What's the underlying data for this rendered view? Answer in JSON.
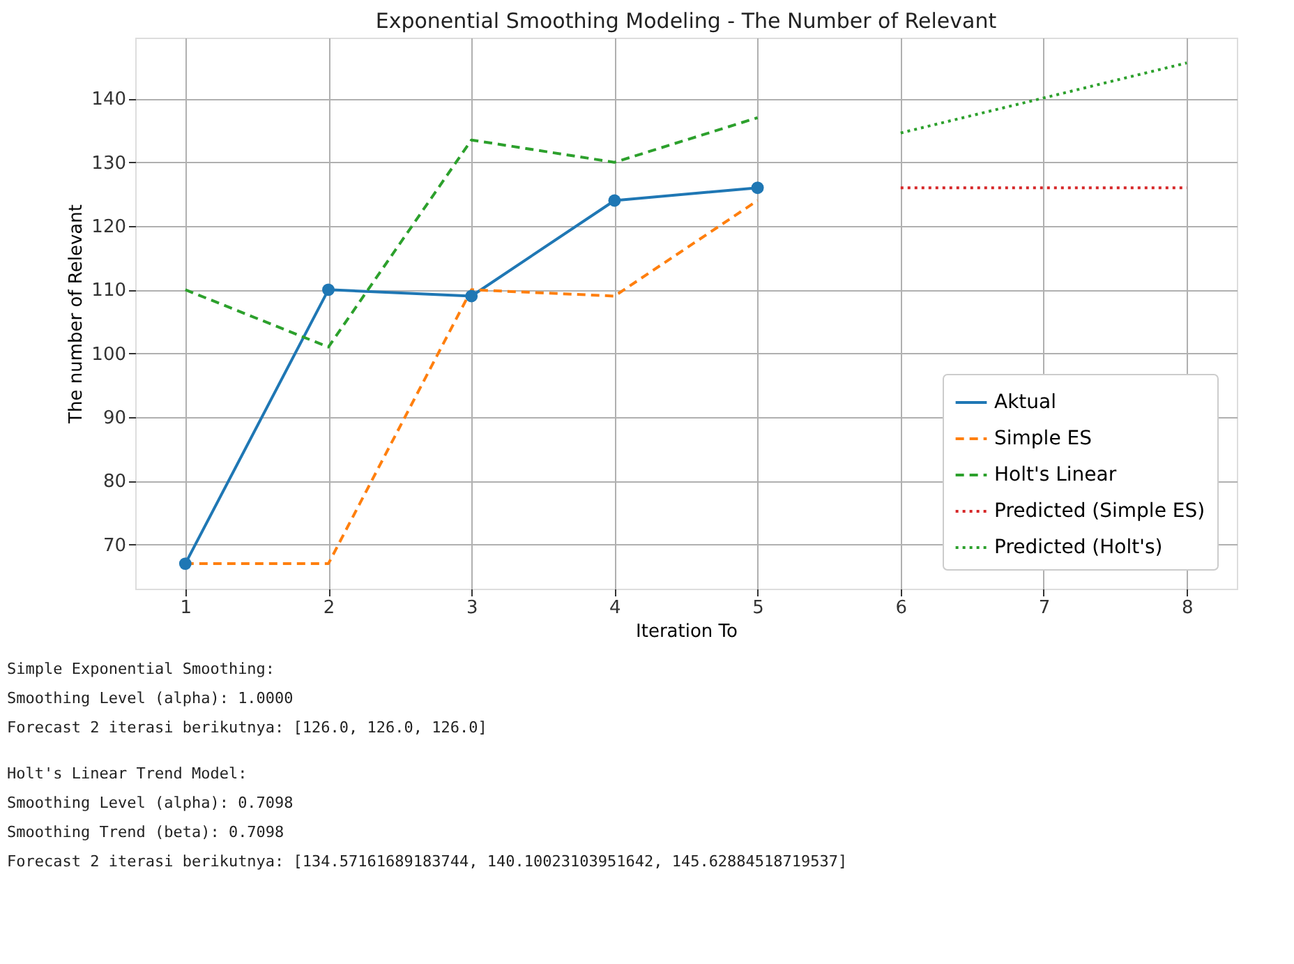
{
  "chart_data": {
    "type": "line",
    "title": "Exponential Smoothing Modeling - The Number of Relevant",
    "xlabel": "Iteration To",
    "ylabel": "The number of Relevant",
    "xlim": [
      0.65,
      8.35
    ],
    "xticks": [
      1,
      2,
      3,
      4,
      5,
      6,
      7,
      8
    ],
    "ylim": [
      63.07,
      149.56
    ],
    "yticks": [
      70,
      80,
      90,
      100,
      110,
      120,
      130,
      140
    ],
    "grid": true,
    "legend": "bottom right",
    "series": [
      {
        "name": "Aktual",
        "color": "#1f77b4",
        "x": [
          1,
          2,
          3,
          4,
          5
        ],
        "values": [
          67,
          110,
          109,
          124,
          126
        ],
        "marker": "circle",
        "line_style": "solid"
      },
      {
        "name": "Simple ES",
        "color": "#ff7f0e",
        "x": [
          1,
          2,
          3,
          4,
          5
        ],
        "values": [
          67,
          67,
          110,
          109,
          124
        ],
        "marker": "none",
        "line_style": "dashed"
      },
      {
        "name": "Holt's Linear",
        "color": "#2ca02c",
        "x": [
          1,
          2,
          3,
          4,
          5
        ],
        "values": [
          110,
          101,
          133.5,
          130,
          137
        ],
        "marker": "none",
        "line_style": "dashed"
      },
      {
        "name": "Predicted (Simple ES)",
        "color": "#d62728",
        "x": [
          6,
          7,
          8
        ],
        "values": [
          126,
          126,
          126
        ],
        "marker": "none",
        "line_style": "dotted"
      },
      {
        "name": "Predicted (Holt's)",
        "color": "#2ca02c",
        "x": [
          6,
          7,
          8
        ],
        "values": [
          134.6,
          140.1,
          145.6
        ],
        "marker": "none",
        "line_style": "dotted"
      }
    ],
    "annotations": [
      "Simple Exponential Smoothing:",
      "Smoothing Level (alpha): 1.0000",
      "Forecast 2 iterasi berikutnya: [126.0, 126.0, 126.0]",
      "Holt's Linear Trend Model:",
      "Smoothing Level (alpha): 0.7098",
      "Smoothing Trend (beta): 0.7098",
      "Forecast 2 iterasi berikutnya: [134.57161689183744, 140.10023103951642, 145.62884518719537]"
    ]
  }
}
